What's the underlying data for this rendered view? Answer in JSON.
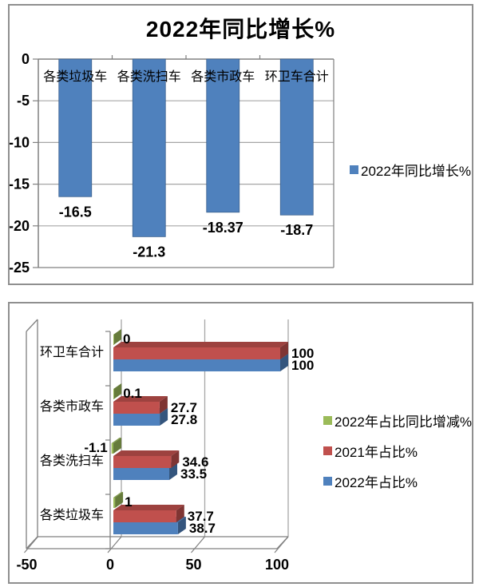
{
  "colors": {
    "axis": "#808080",
    "gridline": "#a6a6a6",
    "panel_border": "#8f8f8f",
    "text": "#000000",
    "bar_blue": "#4F81BD",
    "bar_red": "#C0504D",
    "bar_green": "#9BBB59"
  },
  "chart_data": [
    {
      "type": "bar",
      "title": "2022年同比增长%",
      "categories": [
        "各类垃圾车",
        "各类洗扫车",
        "各类市政车",
        "环卫车合计"
      ],
      "series": [
        {
          "name": "2022年同比增长%",
          "color": "#4F81BD",
          "values": [
            -16.5,
            -21.3,
            -18.37,
            -18.7
          ],
          "labels": [
            "-16.5",
            "-21.3",
            "-18.37",
            "-18.7"
          ]
        }
      ],
      "xlabel": "",
      "ylabel": "",
      "ylim": [
        -25,
        0
      ],
      "ytick_labels": [
        "0",
        "-5",
        "-10",
        "-15",
        "-20",
        "-25"
      ],
      "grid": true,
      "legend_position": "right"
    },
    {
      "type": "bar-3d-horizontal",
      "title": "",
      "categories": [
        "环卫车合计",
        "各类市政车",
        "各类洗扫车",
        "各类垃圾车"
      ],
      "series": [
        {
          "name": "2022年占比同比增减%",
          "color": "#9BBB59",
          "values": [
            0,
            0.1,
            -1.1,
            1
          ],
          "labels": [
            "0",
            "0.1",
            "-1.1",
            "1"
          ]
        },
        {
          "name": "2021年占比%",
          "color": "#C0504D",
          "values": [
            100,
            27.7,
            34.6,
            37.7
          ],
          "labels": [
            "100",
            "27.7",
            "34.6",
            "37.7"
          ]
        },
        {
          "name": "2022年占比%",
          "color": "#4F81BD",
          "values": [
            100,
            27.8,
            33.5,
            38.7
          ],
          "labels": [
            "100",
            "27.8",
            "33.5",
            "38.7"
          ]
        }
      ],
      "xlabel": "",
      "ylabel": "",
      "xlim": [
        -50,
        100
      ],
      "xtick_labels": [
        "-50",
        "0",
        "50",
        "100"
      ],
      "grid": true,
      "legend_position": "right"
    }
  ]
}
